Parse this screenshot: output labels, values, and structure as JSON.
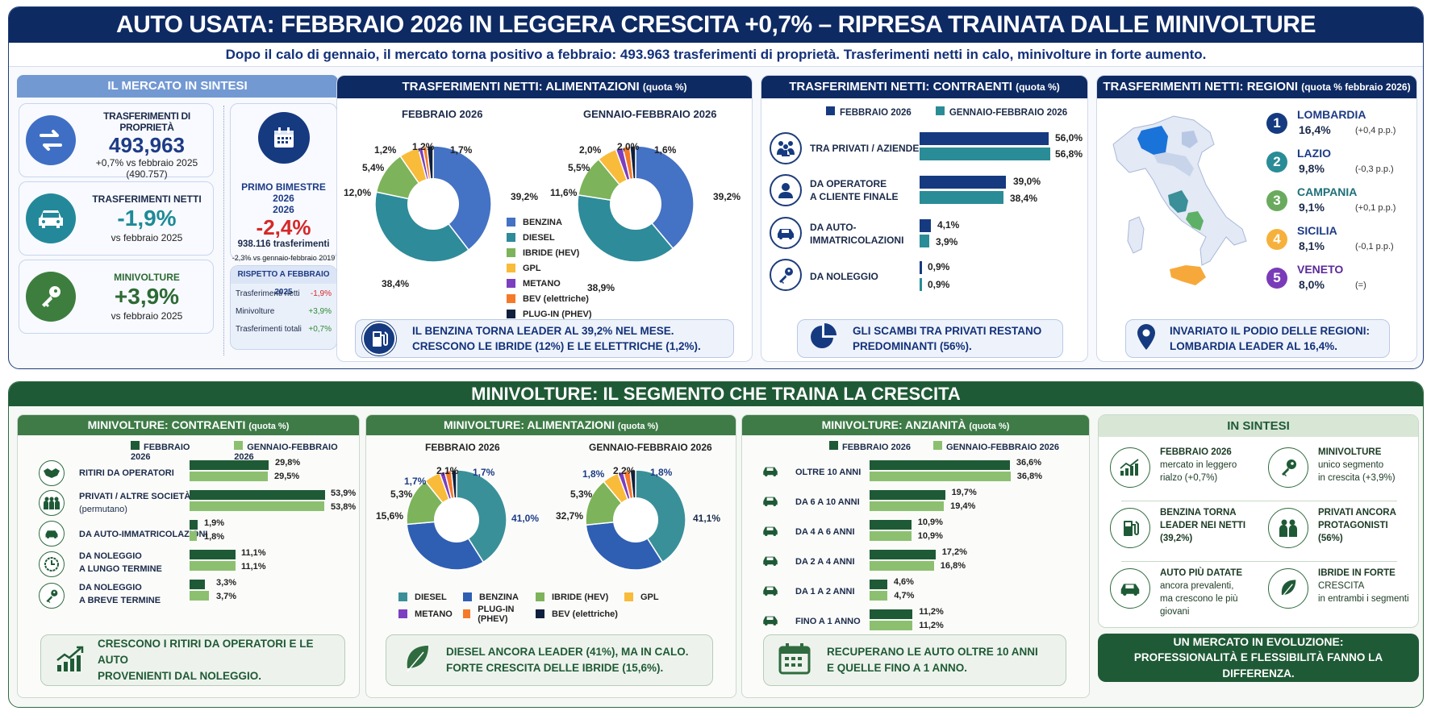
{
  "header": {
    "title": "AUTO USATA: FEBBRAIO 2026 IN LEGGERA CRESCITA +0,7% – RIPRESA TRAINATA DALLE MINIVOLTURE",
    "subtitle": "Dopo il calo di gennaio, il mercato torna positivo a febbraio: 493.963 trasferimenti di proprietà. Trasferimenti netti in calo, minivolture in forte aumento."
  },
  "colors": {
    "navy": "#0e2a63",
    "benzina": "#4472c4",
    "diesel": "#2e8b9a",
    "ibride": "#7db35a",
    "gpl": "#f9bb3a",
    "metano": "#7b3fbf",
    "bev": "#f47a2a",
    "phev": "#0f1f3d",
    "dark_green": "#1f5a36",
    "light_green": "#8cc070",
    "red": "#d62828",
    "teal": "#1e8a96"
  },
  "sintesi": {
    "title": "IL MERCATO IN SINTESI",
    "trasferimenti": {
      "label": "TRASFERIMENTI DI PROPRIETÀ",
      "value": "493,963",
      "delta": "+0,7% vs febbraio 2025",
      "prev": "(490.757)"
    },
    "netti": {
      "label": "TRASFERIMENTI NETTI",
      "value": "-1,9%",
      "delta": "vs febbraio 2025"
    },
    "minivolture": {
      "label": "MINIVOLTURE",
      "value": "+3,9%",
      "delta": "vs febbraio 2025"
    },
    "bimestre": {
      "label": "PRIMO BIMESTRE 2026",
      "label2": "2026",
      "value": "-2,4%",
      "count": "938.116 trasferimenti",
      "note": "-2,3% vs gennaio-febbraio 2019"
    },
    "rispetto": {
      "title": "RISPETTO A FEBBRAIO 2025",
      "rows": [
        {
          "label": "Trasferimenti netti",
          "value": "-1,9%"
        },
        {
          "label": "Minivolture",
          "value": "+3,9%"
        },
        {
          "label": "Trasferimenti totali",
          "value": "+0,7%"
        }
      ]
    }
  },
  "alimentazioni": {
    "title": "TRASFERIMENTI NETTI: ALIMENTAZIONI",
    "title_small": "(quota %)",
    "chart1_title": "FEBBRAIO 2026",
    "chart2_title": "GENNAIO-FEBBRAIO 2026",
    "legend": [
      "BENZINA",
      "DIESEL",
      "IBRIDE (HEV)",
      "GPL",
      "METANO",
      "BEV (elettriche)",
      "PLUG-IN (PHEV)"
    ],
    "c1_labels": {
      "benzina": "39,2%",
      "diesel": "38,4%",
      "ibride": "12,0%",
      "gpl": "5,4%",
      "metano": "1,2%",
      "bev": "1,2%",
      "phev": "1,7%"
    },
    "c2_labels": {
      "benzina": "39,2%",
      "diesel": "38,9%",
      "ibride": "11,6%",
      "gpl": "5,5%",
      "metano": "2,0%",
      "bev": "2,0%",
      "phev": "1,6%"
    },
    "note": "IL BENZINA TORNA LEADER AL 39,2% NEL MESE.",
    "note2": "CRESCONO LE IBRIDE (12%) E LE ELETTRICHE (1,2%)."
  },
  "contraenti": {
    "title": "TRASFERIMENTI NETTI: CONTRAENTI",
    "title_small": "(quota %)",
    "legend": [
      "FEBBRAIO 2026",
      "GENNAIO-FEBBRAIO 2026"
    ],
    "rows": [
      {
        "label": "TRA PRIVATI / AZIENDE",
        "label2": "",
        "v1": "56,0%",
        "v2": "56,8%"
      },
      {
        "label": "DA OPERATORE",
        "label2": "A CLIENTE FINALE",
        "v1": "39,0%",
        "v2": "38,4%"
      },
      {
        "label": "DA AUTO-",
        "label2": "IMMATRICOLAZIONI",
        "v1": "4,1%",
        "v2": "3,9%"
      },
      {
        "label": "DA NOLEGGIO",
        "label2": "",
        "v1": "0,9%",
        "v2": "0,9%"
      }
    ],
    "note": "GLI SCAMBI TRA PRIVATI RESTANO",
    "note2": "PREDOMINANTI (56%)."
  },
  "regioni": {
    "title": "TRASFERIMENTI NETTI: REGIONI",
    "title_small": "(quota % febbraio 2026)",
    "items": [
      {
        "rank": "1",
        "name": "LOMBARDIA",
        "value": "16,4%",
        "delta": "(+0,4 p.p.)",
        "color": "#163a80"
      },
      {
        "rank": "2",
        "name": "LAZIO",
        "value": "9,8%",
        "delta": "(-0,3 p.p.)",
        "color": "#2a8c96"
      },
      {
        "rank": "3",
        "name": "CAMPANIA",
        "value": "9,1%",
        "delta": "(+0,1 p.p.)",
        "color": "#6aaa5e"
      },
      {
        "rank": "4",
        "name": "SICILIA",
        "value": "8,1%",
        "delta": "(-0,1 p.p.)",
        "color": "#f6b13c"
      },
      {
        "rank": "5",
        "name": "VENETO",
        "value": "8,0%",
        "delta": "(=)",
        "color": "#7a3bb8"
      }
    ],
    "note": "INVARIATO IL PODIO DELLE REGIONI:",
    "note2": "LOMBARDIA LEADER AL 16,4%."
  },
  "minivolture_section": {
    "title": "MINIVOLTURE: IL SEGMENTO CHE TRAINA LA CRESCITA"
  },
  "mv_contraenti": {
    "title": "MINIVOLTURE: CONTRAENTI",
    "title_small": "(quota %)",
    "legend": [
      "FEBBRAIO 2026",
      "GENNAIO-FEBBRAIO 2026"
    ],
    "rows": [
      {
        "label": "RITIRI DA OPERATORI",
        "label2": "",
        "v1": "29,8%",
        "v2": "29,5%"
      },
      {
        "label": "PRIVATI / ALTRE SOCIETÀ",
        "label2": "(permutano)",
        "v1": "53,9%",
        "v2": "53,8%"
      },
      {
        "label": "DA AUTO-IMMATRICOLAZIONI",
        "label2": "",
        "v1": "1,9%",
        "v2": "1,8%"
      },
      {
        "label": "DA NOLEGGIO",
        "label2": "A LUNGO TERMINE",
        "v1": "11,1%",
        "v2": "11,1%"
      },
      {
        "label": "DA NOLEGGIO",
        "label2": "A BREVE TERMINE",
        "v1": "3,3%",
        "v2": "3,7%"
      }
    ],
    "note": "CRESCONO I RITIRI DA OPERATORI E LE AUTO",
    "note2": "PROVENIENTI DAL NOLEGGIO."
  },
  "mv_alimentazioni": {
    "title": "MINIVOLTURE: ALIMENTAZIONI",
    "title_small": "(quota %)",
    "chart1_title": "FEBBRAIO 2026",
    "chart2_title": "GENNAIO-FEBBRAIO 2026",
    "legend": [
      "DIESEL",
      "BENZINA",
      "IBRIDE (HEV)",
      "GPL",
      "METANO",
      "PLUG-IN (PHEV)",
      "BEV (elettriche)"
    ],
    "c1_labels": {
      "diesel": "41,0%",
      "ibride": "15,6%",
      "gpl": "5,3%",
      "metano": "1,7%",
      "phev": "2,1%",
      "bev": "1,7%"
    },
    "c2_labels": {
      "diesel": "41,1%",
      "ibride": "32,7%",
      "gpl": "5,3%",
      "metano": "1,8%",
      "phev": "2,2%",
      "bev": "1,8%"
    },
    "note": "DIESEL ANCORA LEADER (41%), MA IN CALO.",
    "note2": "FORTE CRESCITA DELLE IBRIDE (15,6%)."
  },
  "mv_anzianita": {
    "title": "MINIVOLTURE: ANZIANITÀ",
    "title_small": "(quota %)",
    "legend": [
      "FEBBRAIO 2026",
      "GENNAIO-FEBBRAIO 2026"
    ],
    "rows": [
      {
        "label": "OLTRE 10 ANNI",
        "v1": "36,6%",
        "v2": "36,8%"
      },
      {
        "label": "DA 6 A 10 ANNI",
        "v1": "19,7%",
        "v2": "19,4%"
      },
      {
        "label": "DA 4 A 6 ANNI",
        "v1": "10,9%",
        "v2": "10,9%"
      },
      {
        "label": "DA 2 A 4 ANNI",
        "v1": "17,2%",
        "v2": "16,8%"
      },
      {
        "label": "DA 1 A 2 ANNI",
        "v1": "4,6%",
        "v2": "4,7%"
      },
      {
        "label": "FINO A 1 ANNO",
        "v1": "11,2%",
        "v2": "11,2%"
      }
    ],
    "note": "RECUPERANO LE AUTO OLTRE 10 ANNI",
    "note2": "E QUELLE FINO A 1 ANNO."
  },
  "in_sintesi": {
    "title": "IN SINTESI",
    "items": [
      {
        "title": "FEBBRAIO 2026",
        "text": "mercato in leggero",
        "text2": "rialzo (+0,7%)"
      },
      {
        "title": "MINIVOLTURE",
        "text": "unico segmento",
        "text2": "in crescita (+3,9%)"
      },
      {
        "title": "BENZINA TORNA",
        "text": "LEADER NEI NETTI",
        "text2": "(39,2%)"
      },
      {
        "title": "PRIVATI ANCORA",
        "text": "PROTAGONISTI",
        "text2": "(56%)"
      },
      {
        "title": "AUTO PIÙ DATATE",
        "text": "ancora prevalenti,",
        "text2": "ma crescono le più giovani"
      },
      {
        "title": "IBRIDE IN FORTE",
        "text": "CRESCITA",
        "text2": "in entrambi i segmenti"
      }
    ],
    "footer": "UN MERCATO IN EVOLUZIONE:",
    "footer2": "PROFESSIONALITÀ E FLESSIBILITÀ FANNO LA DIFFERENZA."
  },
  "chart_data": [
    {
      "type": "pie",
      "title": "Trasferimenti netti: alimentazioni – Febbraio 2026 (quota %)",
      "categories": [
        "Benzina",
        "Diesel",
        "Ibride (HEV)",
        "GPL",
        "Metano",
        "BEV (elettriche)",
        "Plug-in (PHEV)"
      ],
      "values": [
        39.2,
        38.4,
        12.0,
        5.4,
        1.2,
        1.2,
        1.7
      ]
    },
    {
      "type": "pie",
      "title": "Trasferimenti netti: alimentazioni – Gennaio-Febbraio 2026 (quota %)",
      "categories": [
        "Benzina",
        "Diesel",
        "Ibride (HEV)",
        "GPL",
        "Metano",
        "BEV (elettriche)",
        "Plug-in (PHEV)"
      ],
      "values": [
        39.2,
        38.9,
        11.6,
        5.5,
        2.0,
        2.0,
        1.6
      ]
    },
    {
      "type": "bar",
      "title": "Trasferimenti netti: contraenti (quota %)",
      "categories": [
        "Tra privati / aziende",
        "Da operatore a cliente finale",
        "Da auto-immatricolazioni",
        "Da noleggio"
      ],
      "series": [
        {
          "name": "Febbraio 2026",
          "values": [
            56.0,
            39.0,
            4.1,
            0.9
          ]
        },
        {
          "name": "Gennaio-Febbraio 2026",
          "values": [
            56.8,
            38.4,
            3.9,
            0.9
          ]
        }
      ]
    },
    {
      "type": "table",
      "title": "Trasferimenti netti: regioni (quota % febbraio 2026)",
      "categories": [
        "Lombardia",
        "Lazio",
        "Campania",
        "Sicilia",
        "Veneto"
      ],
      "values": [
        16.4,
        9.8,
        9.1,
        8.1,
        8.0
      ],
      "delta_pp": [
        "+0,4",
        "-0,3",
        "+0,1",
        "-0,1",
        "="
      ]
    },
    {
      "type": "bar",
      "title": "Minivolture: contraenti (quota %)",
      "categories": [
        "Ritiri da operatori",
        "Privati / altre società (permutano)",
        "Da auto-immatricolazioni",
        "Da noleggio a lungo termine",
        "Da noleggio a breve termine"
      ],
      "series": [
        {
          "name": "Febbraio 2026",
          "values": [
            29.8,
            53.9,
            1.9,
            11.1,
            3.3
          ]
        },
        {
          "name": "Gennaio-Febbraio 2026",
          "values": [
            29.5,
            53.8,
            1.8,
            11.1,
            3.7
          ]
        }
      ]
    },
    {
      "type": "pie",
      "title": "Minivolture: alimentazioni – Febbraio 2026 (quota %)",
      "categories": [
        "Diesel",
        "Benzina",
        "Ibride (HEV)",
        "GPL",
        "Metano",
        "Plug-in (PHEV)",
        "BEV (elettriche)"
      ],
      "values": [
        41.0,
        32.6,
        15.6,
        5.3,
        1.7,
        2.1,
        1.7
      ]
    },
    {
      "type": "pie",
      "title": "Minivolture: alimentazioni – Gennaio-Febbraio 2026 (quota %)",
      "categories": [
        "Diesel",
        "Benzina",
        "Ibride (HEV)",
        "GPL",
        "Metano",
        "Plug-in (PHEV)",
        "BEV (elettriche)"
      ],
      "values": [
        41.1,
        32.5,
        32.7,
        5.3,
        1.8,
        2.2,
        1.8
      ]
    },
    {
      "type": "bar",
      "title": "Minivolture: anzianità (quota %)",
      "categories": [
        "Oltre 10 anni",
        "Da 6 a 10 anni",
        "Da 4 a 6 anni",
        "Da 2 a 4 anni",
        "Da 1 a 2 anni",
        "Fino a 1 anno"
      ],
      "series": [
        {
          "name": "Febbraio 2026",
          "values": [
            36.6,
            19.7,
            10.9,
            17.2,
            4.6,
            11.2
          ]
        },
        {
          "name": "Gennaio-Febbraio 2026",
          "values": [
            36.8,
            19.4,
            10.9,
            16.8,
            4.7,
            11.2
          ]
        }
      ]
    }
  ]
}
